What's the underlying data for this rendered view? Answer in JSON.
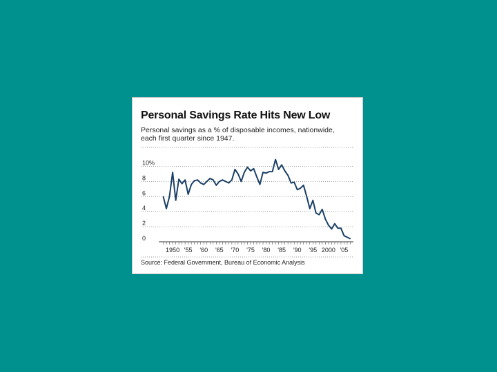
{
  "chart_data": {
    "type": "line",
    "title": "Personal Savings Rate Hits New Low",
    "subtitle": "Personal savings as a % of disposable incomes, nationwide, each first quarter since 1947.",
    "source": "Source: Federal Government, Bureau of Economic Analysis",
    "xlabel": "",
    "ylabel": "",
    "ylim": [
      0,
      10.5
    ],
    "xlim": [
      1946,
      2008
    ],
    "y_ticks": [
      {
        "value": 10,
        "label": "10%"
      },
      {
        "value": 8,
        "label": "8"
      },
      {
        "value": 6,
        "label": "6"
      },
      {
        "value": 4,
        "label": "4"
      },
      {
        "value": 2,
        "label": "2"
      },
      {
        "value": 0,
        "label": "0"
      }
    ],
    "x_ticks": [
      {
        "value": 1950,
        "label": "1950"
      },
      {
        "value": 1955,
        "label": "'55"
      },
      {
        "value": 1960,
        "label": "'60"
      },
      {
        "value": 1965,
        "label": "'65"
      },
      {
        "value": 1970,
        "label": "'70"
      },
      {
        "value": 1975,
        "label": "'75"
      },
      {
        "value": 1980,
        "label": "'80"
      },
      {
        "value": 1985,
        "label": "'85"
      },
      {
        "value": 1990,
        "label": "'90"
      },
      {
        "value": 1995,
        "label": "'95"
      },
      {
        "value": 2000,
        "label": "2000"
      },
      {
        "value": 2005,
        "label": "'05"
      }
    ],
    "grid": true,
    "line_color": "#1a3f66",
    "series": [
      {
        "x": [
          1947,
          1948,
          1949,
          1950,
          1951,
          1952,
          1953,
          1954,
          1955,
          1956,
          1957,
          1958,
          1959,
          1960,
          1961,
          1962,
          1963,
          1964,
          1965,
          1966,
          1967,
          1968,
          1969,
          1970,
          1971,
          1972,
          1973,
          1974,
          1975,
          1976,
          1977,
          1978,
          1979,
          1980,
          1981,
          1982,
          1983,
          1984,
          1985,
          1986,
          1987,
          1988,
          1989,
          1990,
          1991,
          1992,
          1993,
          1994,
          1995,
          1996,
          1997,
          1998,
          1999,
          2000,
          2001,
          2002,
          2003,
          2004,
          2005,
          2006,
          2007
        ],
        "y": [
          6.0,
          4.4,
          6.0,
          9.2,
          5.5,
          8.3,
          7.7,
          8.2,
          6.3,
          7.6,
          8.1,
          8.2,
          7.8,
          7.6,
          8.0,
          8.4,
          8.2,
          7.5,
          8.0,
          8.2,
          8.0,
          7.8,
          8.2,
          9.6,
          9.0,
          8.0,
          9.2,
          9.9,
          9.4,
          9.7,
          8.6,
          7.6,
          9.2,
          9.1,
          9.3,
          9.3,
          10.9,
          9.6,
          10.2,
          9.4,
          8.8,
          7.8,
          7.9,
          6.9,
          7.1,
          7.5,
          6.0,
          4.4,
          5.5,
          3.8,
          3.6,
          4.3,
          3.0,
          2.2,
          1.7,
          2.4,
          1.8,
          1.8,
          0.8,
          0.6,
          0.4
        ]
      }
    ]
  }
}
